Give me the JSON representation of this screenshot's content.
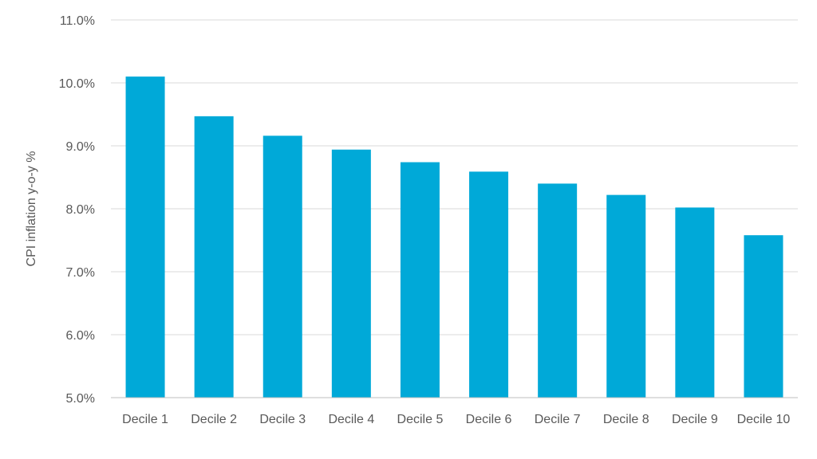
{
  "chart_data": {
    "type": "bar",
    "title": "",
    "xlabel": "",
    "ylabel": "CPI inflation y-o-y %",
    "categories": [
      "Decile 1",
      "Decile 2",
      "Decile 3",
      "Decile 4",
      "Decile 5",
      "Decile 6",
      "Decile 7",
      "Decile 8",
      "Decile 9",
      "Decile 10"
    ],
    "values": [
      10.1,
      9.47,
      9.16,
      8.94,
      8.74,
      8.59,
      8.4,
      8.22,
      8.02,
      7.58
    ],
    "ylim": [
      5.0,
      11.0
    ],
    "yticks": [
      "5.0%",
      "6.0%",
      "7.0%",
      "8.0%",
      "9.0%",
      "10.0%",
      "11.0%"
    ],
    "grid": true,
    "legend": "none",
    "colors": {
      "bar": "#00A9D8",
      "grid": "#D9D9D9",
      "axis": "#BFBFBF",
      "text": "#595959"
    }
  }
}
